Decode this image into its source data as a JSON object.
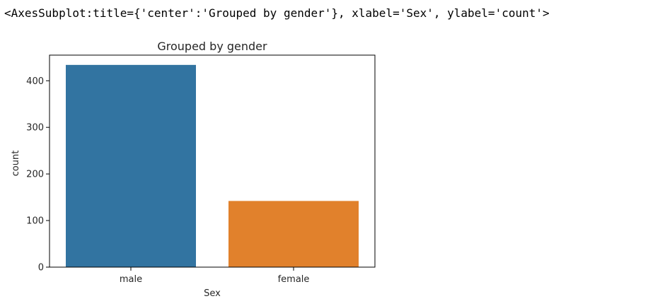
{
  "output": {
    "repr_text": "<AxesSubplot:title={'center':'Grouped by gender'}, xlabel='Sex', ylabel='count'>"
  },
  "chart_data": {
    "type": "bar",
    "title": "Grouped by gender",
    "xlabel": "Sex",
    "ylabel": "count",
    "categories": [
      "male",
      "female"
    ],
    "values": [
      434,
      142
    ],
    "colors": [
      "#3274a1",
      "#e1812c"
    ],
    "ylim": [
      0,
      455
    ],
    "yticks": [
      0,
      100,
      200,
      300,
      400
    ],
    "grid": false
  }
}
